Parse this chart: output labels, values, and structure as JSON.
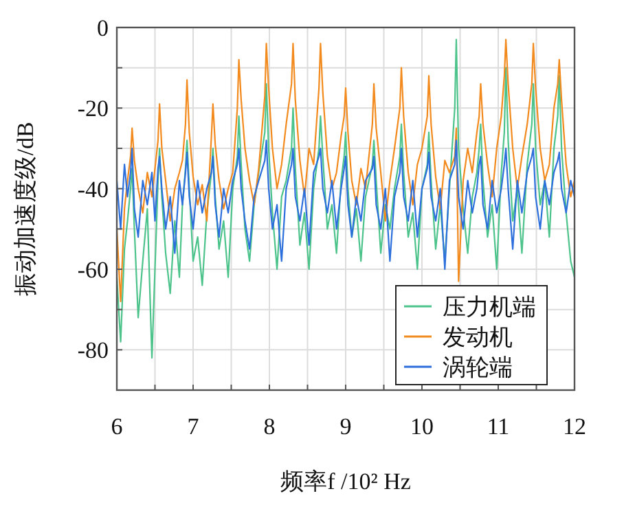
{
  "chart_data": {
    "type": "line",
    "xlabel": "频率f /10² Hz",
    "ylabel": "振动加速度级/dB",
    "xlim": [
      6,
      12
    ],
    "ylim": [
      -90,
      0
    ],
    "xticks": [
      6,
      {
        "value": 6.5,
        "label": null
      },
      7,
      {
        "value": 7.5,
        "label": null
      },
      8,
      {
        "value": 8.5,
        "label": null
      },
      9,
      {
        "value": 9.5,
        "label": null
      },
      10,
      {
        "value": 10.5,
        "label": null
      },
      11,
      {
        "value": 11.5,
        "label": null
      },
      12
    ],
    "yticks": [
      {
        "value": -90,
        "label": null
      },
      -80,
      {
        "value": -70,
        "label": null
      },
      -60,
      {
        "value": -50,
        "label": null
      },
      -40,
      {
        "value": -30,
        "label": null
      },
      -20,
      {
        "value": -10,
        "label": null
      },
      0
    ],
    "grid": true,
    "legend": "bottom right",
    "x": [
      6.0,
      6.05,
      6.1,
      6.14,
      6.18,
      6.2,
      6.23,
      6.28,
      6.34,
      6.4,
      6.46,
      6.5,
      6.54,
      6.56,
      6.59,
      6.64,
      6.7,
      6.76,
      6.82,
      6.86,
      6.9,
      6.92,
      6.95,
      7.0,
      7.06,
      7.12,
      7.18,
      7.24,
      7.26,
      7.29,
      7.34,
      7.4,
      7.46,
      7.52,
      7.58,
      7.6,
      7.63,
      7.68,
      7.74,
      7.8,
      7.86,
      7.94,
      7.96,
      7.99,
      8.04,
      8.1,
      8.16,
      8.22,
      8.29,
      8.31,
      8.34,
      8.4,
      8.46,
      8.52,
      8.58,
      8.65,
      8.67,
      8.7,
      8.76,
      8.82,
      8.88,
      8.94,
      8.98,
      9.0,
      9.03,
      9.08,
      9.14,
      9.2,
      9.26,
      9.35,
      9.37,
      9.4,
      9.46,
      9.52,
      9.58,
      9.64,
      9.71,
      9.73,
      9.76,
      9.82,
      9.88,
      9.94,
      10.0,
      10.07,
      10.09,
      10.12,
      10.18,
      10.24,
      10.3,
      10.36,
      10.43,
      10.45,
      10.48,
      10.54,
      10.6,
      10.66,
      10.72,
      10.75,
      10.77,
      10.8,
      10.86,
      10.92,
      10.98,
      11.04,
      11.08,
      11.1,
      11.13,
      11.19,
      11.25,
      11.31,
      11.38,
      11.44,
      11.46,
      11.49,
      11.55,
      11.61,
      11.67,
      11.73,
      11.78,
      11.8,
      11.83,
      11.89,
      11.95,
      12.0
    ],
    "series": [
      {
        "name": "压力机端",
        "color": "#4cc38a",
        "values": [
          -62,
          -78,
          -55,
          -48,
          -40,
          -35,
          -50,
          -72,
          -58,
          -45,
          -82,
          -60,
          -38,
          -30,
          -42,
          -56,
          -66,
          -48,
          -62,
          -44,
          -35,
          -28,
          -40,
          -58,
          -52,
          -64,
          -46,
          -36,
          -30,
          -42,
          -55,
          -48,
          -62,
          -40,
          -32,
          -22,
          -34,
          -50,
          -58,
          -44,
          -36,
          -26,
          -14,
          -30,
          -46,
          -60,
          -42,
          -38,
          -30,
          -20,
          -35,
          -54,
          -46,
          -60,
          -40,
          -30,
          -22,
          -32,
          -50,
          -44,
          -56,
          -38,
          -32,
          -26,
          -40,
          -52,
          -45,
          -58,
          -42,
          -34,
          -28,
          -38,
          -56,
          -44,
          -50,
          -40,
          -32,
          -24,
          -36,
          -52,
          -46,
          -60,
          -40,
          -34,
          -26,
          -38,
          -55,
          -44,
          -58,
          -40,
          -20,
          -3,
          -30,
          -45,
          -56,
          -42,
          -36,
          -30,
          -24,
          -38,
          -52,
          -44,
          -60,
          -36,
          -26,
          -10,
          -28,
          -48,
          -40,
          -56,
          -34,
          -24,
          -14,
          -30,
          -44,
          -38,
          -52,
          -30,
          -22,
          -12,
          -30,
          -46,
          -58,
          -62
        ]
      },
      {
        "name": "发动机",
        "color": "#f28a1e",
        "values": [
          -50,
          -68,
          -45,
          -38,
          -32,
          -25,
          -33,
          -40,
          -46,
          -36,
          -42,
          -35,
          -28,
          -19,
          -30,
          -38,
          -48,
          -40,
          -36,
          -33,
          -24,
          -13,
          -26,
          -37,
          -44,
          -39,
          -48,
          -27,
          -19,
          -29,
          -38,
          -45,
          -40,
          -36,
          -20,
          -8,
          -18,
          -30,
          -38,
          -44,
          -35,
          -17,
          -4,
          -15,
          -30,
          -40,
          -34,
          -24,
          -14,
          -4,
          -18,
          -33,
          -42,
          -30,
          -34,
          -15,
          -4,
          -16,
          -32,
          -40,
          -36,
          -27,
          -22,
          -15,
          -26,
          -38,
          -44,
          -35,
          -40,
          -24,
          -14,
          -25,
          -36,
          -48,
          -38,
          -30,
          -20,
          -10,
          -22,
          -36,
          -44,
          -34,
          -30,
          -22,
          -12,
          -24,
          -37,
          -45,
          -33,
          -36,
          -32,
          -25,
          -63,
          -38,
          -30,
          -36,
          -26,
          -22,
          -14,
          -24,
          -34,
          -42,
          -30,
          -22,
          -12,
          -3,
          -14,
          -30,
          -40,
          -32,
          -24,
          -14,
          -4,
          -15,
          -30,
          -38,
          -34,
          -20,
          -14,
          -8,
          -18,
          -34,
          -42,
          -38
        ]
      },
      {
        "name": "涡轮端",
        "color": "#2c6fdc",
        "values": [
          -38,
          -50,
          -34,
          -42,
          -36,
          -30,
          -45,
          -52,
          -38,
          -44,
          -36,
          -48,
          -35,
          -32,
          -40,
          -50,
          -42,
          -56,
          -38,
          -44,
          -36,
          -31,
          -42,
          -50,
          -38,
          -46,
          -40,
          -36,
          -32,
          -44,
          -52,
          -40,
          -46,
          -38,
          -34,
          -30,
          -40,
          -48,
          -55,
          -42,
          -38,
          -33,
          -28,
          -40,
          -50,
          -44,
          -58,
          -40,
          -34,
          -30,
          -42,
          -48,
          -40,
          -54,
          -36,
          -32,
          -30,
          -40,
          -46,
          -38,
          -50,
          -40,
          -35,
          -32,
          -44,
          -52,
          -42,
          -48,
          -38,
          -35,
          -32,
          -44,
          -50,
          -40,
          -58,
          -42,
          -36,
          -30,
          -42,
          -48,
          -38,
          -52,
          -40,
          -35,
          -31,
          -42,
          -48,
          -40,
          -60,
          -38,
          -34,
          -28,
          -42,
          -50,
          -38,
          -46,
          -40,
          -34,
          -32,
          -44,
          -50,
          -38,
          -46,
          -40,
          -34,
          -30,
          -40,
          -55,
          -38,
          -46,
          -36,
          -32,
          -30,
          -42,
          -50,
          -38,
          -44,
          -36,
          -33,
          -31,
          -40,
          -46,
          -38,
          -42
        ]
      }
    ]
  }
}
